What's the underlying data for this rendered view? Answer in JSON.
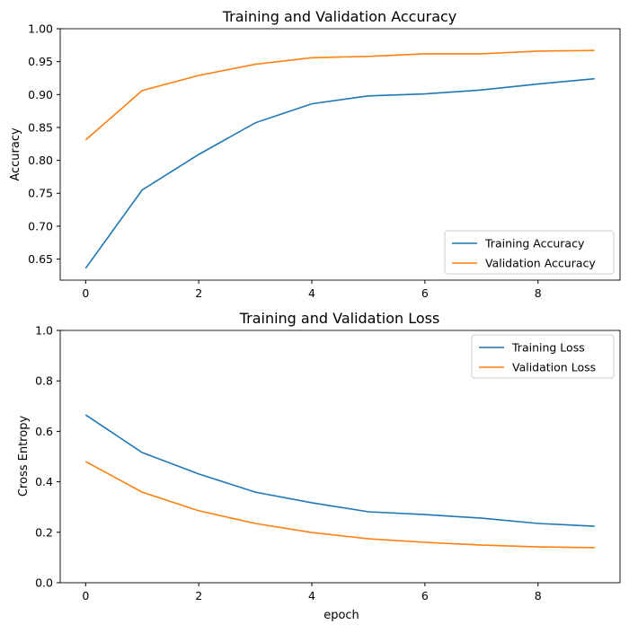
{
  "chart_data": [
    {
      "type": "line",
      "title": "Training and Validation Accuracy",
      "xlabel": "",
      "ylabel": "Accuracy",
      "x": [
        0,
        1,
        2,
        3,
        4,
        5,
        6,
        7,
        8,
        9
      ],
      "xlim": [
        -0.45,
        9.45
      ],
      "ylim": [
        0.618,
        1.0
      ],
      "xticks": [
        0,
        2,
        4,
        6,
        8
      ],
      "yticks": [
        0.65,
        0.7,
        0.75,
        0.8,
        0.85,
        0.9,
        0.95,
        1.0
      ],
      "ytick_labels": [
        "0.65",
        "0.70",
        "0.75",
        "0.80",
        "0.85",
        "0.90",
        "0.95",
        "1.00"
      ],
      "grid": false,
      "legend": "lower-right",
      "series": [
        {
          "name": "Training Accuracy",
          "color": "#1f77b4",
          "values": [
            0.636,
            0.755,
            0.809,
            0.857,
            0.886,
            0.898,
            0.901,
            0.907,
            0.916,
            0.924
          ]
        },
        {
          "name": "Validation Accuracy",
          "color": "#ff7f0e",
          "values": [
            0.831,
            0.906,
            0.929,
            0.946,
            0.956,
            0.958,
            0.962,
            0.962,
            0.966,
            0.967
          ]
        }
      ]
    },
    {
      "type": "line",
      "title": "Training and Validation Loss",
      "xlabel": "epoch",
      "ylabel": "Cross Entropy",
      "x": [
        0,
        1,
        2,
        3,
        4,
        5,
        6,
        7,
        8,
        9
      ],
      "xlim": [
        -0.45,
        9.45
      ],
      "ylim": [
        0.0,
        1.0
      ],
      "xticks": [
        0,
        2,
        4,
        6,
        8
      ],
      "yticks": [
        0.0,
        0.2,
        0.4,
        0.6,
        0.8,
        1.0
      ],
      "ytick_labels": [
        "0.0",
        "0.2",
        "0.4",
        "0.6",
        "0.8",
        "1.0"
      ],
      "grid": false,
      "legend": "upper-right",
      "series": [
        {
          "name": "Training Loss",
          "color": "#1f77b4",
          "values": [
            0.665,
            0.516,
            0.431,
            0.359,
            0.317,
            0.281,
            0.27,
            0.256,
            0.235,
            0.224
          ]
        },
        {
          "name": "Validation Loss",
          "color": "#ff7f0e",
          "values": [
            0.48,
            0.359,
            0.285,
            0.235,
            0.199,
            0.174,
            0.16,
            0.149,
            0.142,
            0.139
          ]
        }
      ]
    }
  ]
}
